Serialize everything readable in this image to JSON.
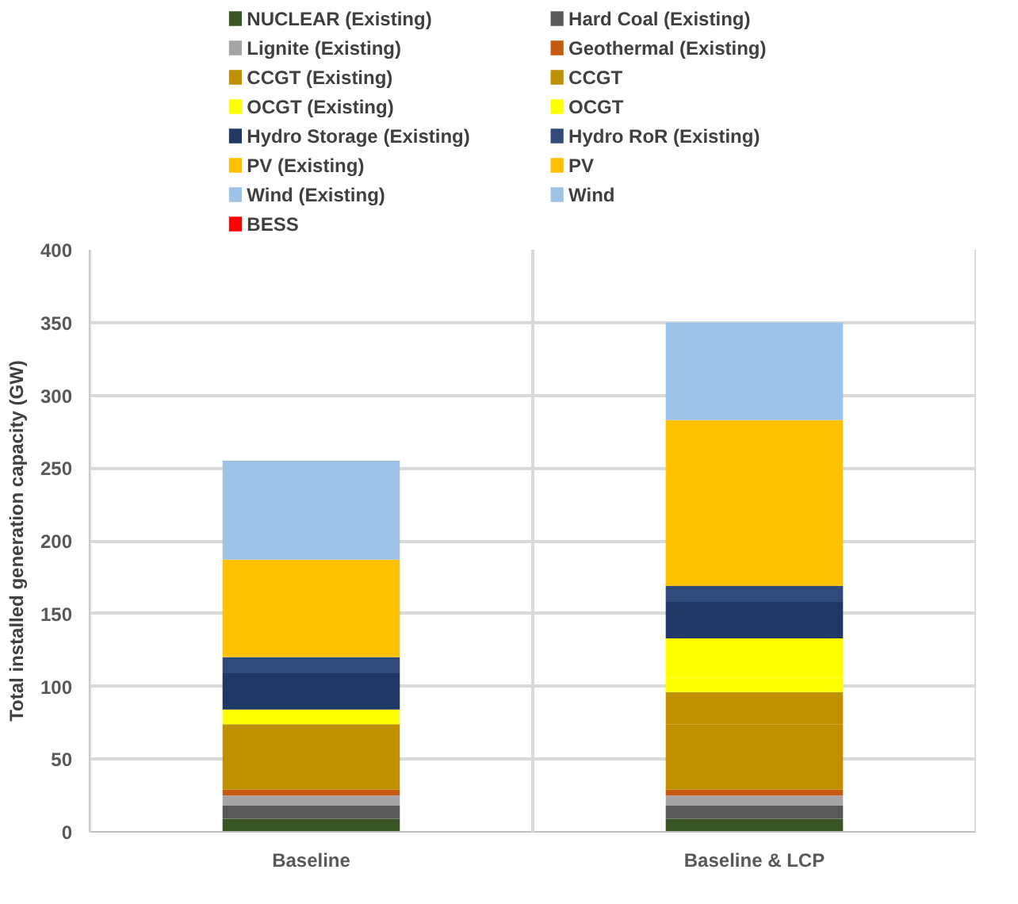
{
  "chart_data": {
    "type": "bar",
    "stacked": true,
    "ylabel": "Total installed generation capacity (GW)",
    "categories": [
      "Baseline",
      "Baseline & LCP"
    ],
    "ylim": [
      0,
      400
    ],
    "yticks": [
      0,
      50,
      100,
      150,
      200,
      250,
      300,
      350,
      400
    ],
    "grid": true,
    "legend": "top",
    "series": [
      {
        "name": "NUCLEAR (Existing)",
        "color": "#375623",
        "values": [
          9,
          9
        ]
      },
      {
        "name": "Hard Coal  (Existing)",
        "color": "#595959",
        "values": [
          9,
          9
        ]
      },
      {
        "name": "Lignite (Existing)",
        "color": "#a5a5a5",
        "values": [
          7,
          7
        ]
      },
      {
        "name": "Geothermal (Existing)",
        "color": "#c55a11",
        "values": [
          4,
          4
        ]
      },
      {
        "name": " CCGT (Existing)",
        "color": "#bf9000",
        "values": [
          45,
          45
        ]
      },
      {
        "name": "CCGT",
        "color": "#bf9000",
        "values": [
          0,
          22
        ]
      },
      {
        "name": "OCGT (Existing)",
        "color": "#ffff00",
        "values": [
          10,
          10
        ]
      },
      {
        "name": "OCGT",
        "color": "#ffff00",
        "values": [
          0,
          27
        ]
      },
      {
        "name": "Hydro Storage (Existing)",
        "color": "#203864",
        "values": [
          25,
          25
        ]
      },
      {
        "name": "Hydro RoR (Existing)",
        "color": "#2f4b7c",
        "values": [
          11,
          11
        ]
      },
      {
        "name": " PV (Existing)",
        "color": "#ffc000",
        "values": [
          67,
          67
        ]
      },
      {
        "name": " PV",
        "color": "#ffc000",
        "values": [
          0,
          47
        ]
      },
      {
        "name": "Wind (Existing)",
        "color": "#9dc3e6",
        "values": [
          68,
          67
        ]
      },
      {
        "name": "Wind",
        "color": "#9dc3e6",
        "values": [
          0,
          0
        ]
      },
      {
        "name": "BESS",
        "color": "#ff0000",
        "values": [
          0,
          0
        ]
      }
    ]
  }
}
